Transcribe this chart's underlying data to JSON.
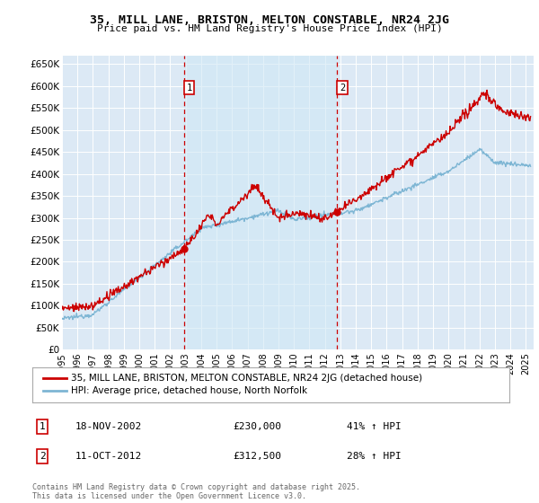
{
  "title": "35, MILL LANE, BRISTON, MELTON CONSTABLE, NR24 2JG",
  "subtitle": "Price paid vs. HM Land Registry's House Price Index (HPI)",
  "ylabel_ticks": [
    "£0",
    "£50K",
    "£100K",
    "£150K",
    "£200K",
    "£250K",
    "£300K",
    "£350K",
    "£400K",
    "£450K",
    "£500K",
    "£550K",
    "£600K",
    "£650K"
  ],
  "ytick_values": [
    0,
    50000,
    100000,
    150000,
    200000,
    250000,
    300000,
    350000,
    400000,
    450000,
    500000,
    550000,
    600000,
    650000
  ],
  "ylim": [
    0,
    670000
  ],
  "xlim_start": 1995.0,
  "xlim_end": 2025.5,
  "background_color": "#dce9f5",
  "highlight_color": "#cce0f0",
  "grid_color": "#ffffff",
  "line1_color": "#cc0000",
  "line2_color": "#7eb6d4",
  "sale1_date": 2002.88,
  "sale1_price": 230000,
  "sale2_date": 2012.79,
  "sale2_price": 312500,
  "sale1_label": "1",
  "sale2_label": "2",
  "vline_color": "#cc0000",
  "dot_color": "#cc0000",
  "legend1_text": "35, MILL LANE, BRISTON, MELTON CONSTABLE, NR24 2JG (detached house)",
  "legend2_text": "HPI: Average price, detached house, North Norfolk",
  "annotation1": [
    "1",
    "18-NOV-2002",
    "£230,000",
    "41% ↑ HPI"
  ],
  "annotation2": [
    "2",
    "11-OCT-2012",
    "£312,500",
    "28% ↑ HPI"
  ],
  "footer": "Contains HM Land Registry data © Crown copyright and database right 2025.\nThis data is licensed under the Open Government Licence v3.0.",
  "xtick_years": [
    1995,
    1996,
    1997,
    1998,
    1999,
    2000,
    2001,
    2002,
    2003,
    2004,
    2005,
    2006,
    2007,
    2008,
    2009,
    2010,
    2011,
    2012,
    2013,
    2014,
    2015,
    2016,
    2017,
    2018,
    2019,
    2020,
    2021,
    2022,
    2023,
    2024,
    2025
  ],
  "fig_width": 6.0,
  "fig_height": 5.6,
  "dpi": 100
}
